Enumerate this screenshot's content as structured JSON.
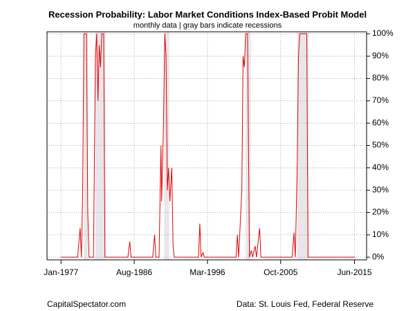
{
  "chart_data": {
    "type": "line",
    "title": "Recession Probability: Labor Market Conditions Index-Based Probit Model",
    "subtitle": "monthly data | gray bars indicate recessions",
    "source_left": "CapitalSpectator.com",
    "source_right": "Data: St. Louis Fed, Federal Reserve",
    "x": [
      "1977-01",
      "1979-03",
      "1979-07",
      "1979-09",
      "1979-11",
      "1980-01",
      "1980-05",
      "1980-07",
      "1980-09",
      "1981-04",
      "1981-07",
      "1981-09",
      "1981-11",
      "1982-01",
      "1982-03",
      "1982-05",
      "1982-08",
      "1982-10",
      "1985-10",
      "1986-01",
      "1986-03",
      "1989-01",
      "1989-04",
      "1989-06",
      "1989-11",
      "1990-02",
      "1990-03",
      "1990-06",
      "1990-08",
      "1990-10",
      "1990-12",
      "1991-02",
      "1991-04",
      "1991-07",
      "1991-09",
      "1991-11",
      "1995-01",
      "1995-03",
      "1995-05",
      "1995-08",
      "1995-10",
      "1999-12",
      "2000-02",
      "2000-04",
      "2000-09",
      "2000-11",
      "2001-01",
      "2001-03",
      "2001-06",
      "2001-09",
      "2001-12",
      "2002-02",
      "2002-06",
      "2002-08",
      "2003-01",
      "2003-03",
      "2007-04",
      "2007-07",
      "2007-09",
      "2007-12",
      "2008-02",
      "2008-04",
      "2009-03",
      "2009-05",
      "2015-06"
    ],
    "series": [
      {
        "color": "#e00000",
        "values": [
          0,
          0,
          13,
          0,
          30,
          100,
          100,
          20,
          0,
          0,
          90,
          100,
          70,
          95,
          85,
          100,
          100,
          0,
          0,
          7,
          0,
          0,
          10,
          0,
          0,
          50,
          25,
          60,
          100,
          90,
          30,
          40,
          25,
          40,
          5,
          0,
          0,
          15,
          0,
          2,
          0,
          0,
          10,
          0,
          30,
          90,
          85,
          100,
          100,
          0,
          3,
          0,
          5,
          0,
          13,
          0,
          0,
          11,
          0,
          40,
          90,
          100,
          100,
          0,
          0
        ]
      }
    ],
    "recessions": [
      {
        "start": "1980-01",
        "end": "1980-07",
        "color": "#e8e6ea"
      },
      {
        "start": "1981-07",
        "end": "1982-11",
        "color": "#e8e6ea"
      },
      {
        "start": "1990-07",
        "end": "1991-03",
        "color": "#e8e6ea"
      },
      {
        "start": "2001-03",
        "end": "2001-11",
        "color": "#e8e6ea"
      },
      {
        "start": "2007-12",
        "end": "2009-06",
        "color": "#e8e6ea"
      }
    ],
    "xlim": [
      "1975-03",
      "2017-01"
    ],
    "xticks": [
      {
        "value": "1977-01",
        "label": "Jan-1977"
      },
      {
        "value": "1986-08",
        "label": "Aug-1986"
      },
      {
        "value": "1996-03",
        "label": "Mar-1996"
      },
      {
        "value": "2005-10",
        "label": "Oct-2005"
      },
      {
        "value": "2015-06",
        "label": "Jun-2015"
      }
    ],
    "ylim": [
      -1.2,
      100.9
    ],
    "yticks": [
      {
        "value": 0,
        "label": "0%"
      },
      {
        "value": 10,
        "label": "10%"
      },
      {
        "value": 20,
        "label": "20%"
      },
      {
        "value": 30,
        "label": "30%"
      },
      {
        "value": 40,
        "label": "40%"
      },
      {
        "value": 50,
        "label": "50%"
      },
      {
        "value": 60,
        "label": "60%"
      },
      {
        "value": 70,
        "label": "70%"
      },
      {
        "value": 80,
        "label": "80%"
      },
      {
        "value": 90,
        "label": "90%"
      },
      {
        "value": 100,
        "label": "100%"
      }
    ],
    "y_axis_side": "right",
    "grid": true
  }
}
